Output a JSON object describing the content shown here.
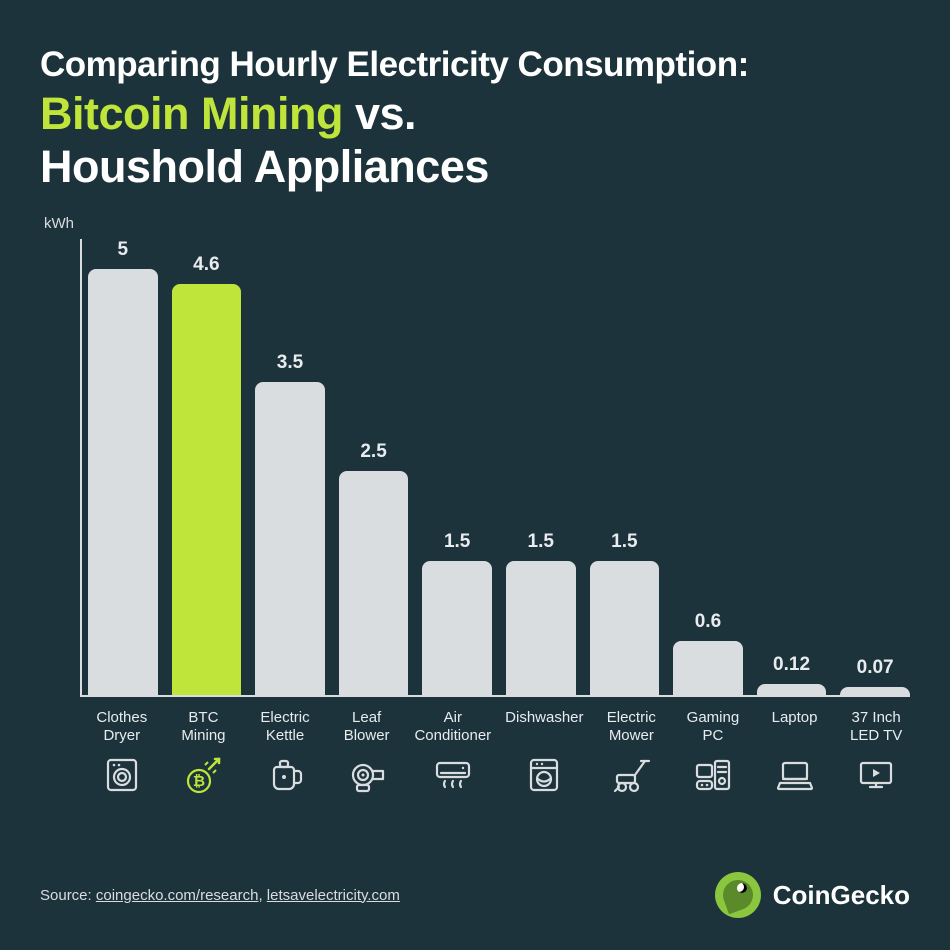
{
  "title": {
    "line1": "Comparing Hourly Electricity Consumption:",
    "accent": "Bitcoin Mining",
    "vs": " vs.",
    "line3": "Houshold Appliances",
    "title_fontsize_small": 35,
    "title_fontsize_large": 45,
    "title_color": "#ffffff",
    "accent_color": "#bfe43a"
  },
  "chart": {
    "type": "bar",
    "y_unit_label": "kWh",
    "y_max": 5.1,
    "y_min": 0,
    "axis_color": "#d9dde0",
    "bar_radius": 8,
    "default_bar_color": "#d9dde0",
    "highlight_bar_color": "#bfe43a",
    "value_label_color": "#e8ecee",
    "value_label_fontsize": 19,
    "category_label_fontsize": 15,
    "background_color": "#1d333b",
    "items": [
      {
        "label": "Clothes\nDryer",
        "value": 5,
        "value_text": "5",
        "color": "#d9dde0",
        "icon": "dryer"
      },
      {
        "label": "BTC\nMining",
        "value": 4.6,
        "value_text": "4.6",
        "color": "#bfe43a",
        "icon": "btc"
      },
      {
        "label": "Electric\nKettle",
        "value": 3.5,
        "value_text": "3.5",
        "color": "#d9dde0",
        "icon": "kettle"
      },
      {
        "label": "Leaf\nBlower",
        "value": 2.5,
        "value_text": "2.5",
        "color": "#d9dde0",
        "icon": "blower"
      },
      {
        "label": "Air\nConditioner",
        "value": 1.5,
        "value_text": "1.5",
        "color": "#d9dde0",
        "icon": "ac"
      },
      {
        "label": "Dishwasher",
        "value": 1.5,
        "value_text": "1.5",
        "color": "#d9dde0",
        "icon": "dishwasher"
      },
      {
        "label": "Electric\nMower",
        "value": 1.5,
        "value_text": "1.5",
        "color": "#d9dde0",
        "icon": "mower"
      },
      {
        "label": "Gaming\nPC",
        "value": 0.6,
        "value_text": "0.6",
        "color": "#d9dde0",
        "icon": "gamingpc"
      },
      {
        "label": "Laptop",
        "value": 0.12,
        "value_text": "0.12",
        "color": "#d9dde0",
        "icon": "laptop"
      },
      {
        "label": "37 Inch\nLED TV",
        "value": 0.07,
        "value_text": "0.07",
        "color": "#d9dde0",
        "icon": "tv"
      }
    ]
  },
  "footer": {
    "source_prefix": "Source: ",
    "source_link1": "coingecko.com/research",
    "source_sep": ", ",
    "source_link2": "letsavelectricity.com",
    "brand_name": "CoinGecko",
    "brand_color": "#8bc63f"
  }
}
